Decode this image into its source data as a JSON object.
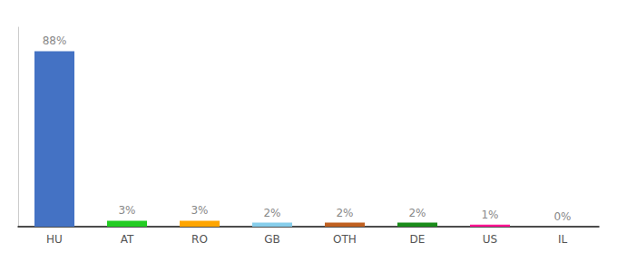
{
  "chart_data": {
    "type": "bar",
    "categories": [
      "HU",
      "AT",
      "RO",
      "GB",
      "OTH",
      "DE",
      "US",
      "IL"
    ],
    "values": [
      88,
      3,
      3,
      2,
      2,
      2,
      1,
      0
    ],
    "value_labels": [
      "88%",
      "3%",
      "3%",
      "2%",
      "2%",
      "2%",
      "1%",
      "0%"
    ],
    "colors": [
      "#4472C4",
      "#22CC22",
      "#FFA500",
      "#87CEEB",
      "#C06020",
      "#1A8C1A",
      "#FF1493",
      "#AAAAAA"
    ],
    "ylim": [
      0,
      100
    ],
    "grid": false,
    "data_labels": true,
    "tick_labels": "x"
  }
}
